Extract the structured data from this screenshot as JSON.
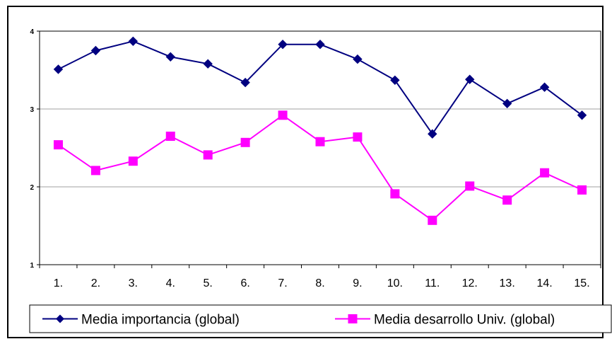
{
  "chart_data": {
    "type": "line",
    "title": "",
    "xlabel": "",
    "ylabel": "",
    "categories": [
      "1.",
      "2.",
      "3.",
      "4.",
      "5.",
      "6.",
      "7.",
      "8.",
      "9.",
      "10.",
      "11.",
      "12.",
      "13.",
      "14.",
      "15."
    ],
    "ylim": [
      1,
      4
    ],
    "yticks": [
      "1",
      "2",
      "3",
      "4"
    ],
    "grid": "horizontal",
    "legend_position": "bottom",
    "series": [
      {
        "name": "Media importancia (global)",
        "color": "#000080",
        "marker": "diamond",
        "values": [
          3.51,
          3.75,
          3.87,
          3.67,
          3.58,
          3.34,
          3.83,
          3.83,
          3.64,
          3.37,
          2.68,
          3.38,
          3.07,
          3.28,
          2.92
        ]
      },
      {
        "name": "Media desarrollo Univ. (global)",
        "color": "#ff00ff",
        "marker": "square",
        "values": [
          2.54,
          2.21,
          2.33,
          2.65,
          2.41,
          2.57,
          2.92,
          2.58,
          2.64,
          1.91,
          1.57,
          2.01,
          1.83,
          2.18,
          1.96
        ]
      }
    ]
  }
}
